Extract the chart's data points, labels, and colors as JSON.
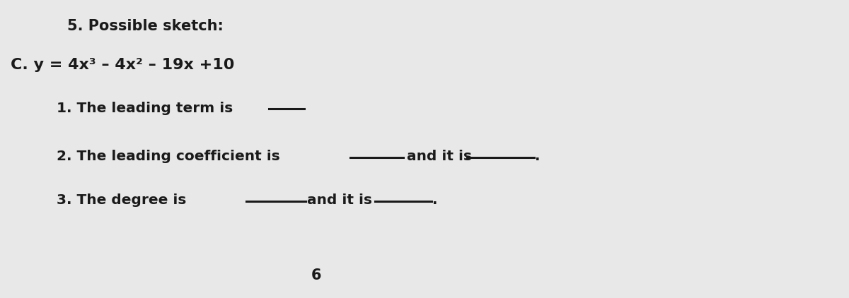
{
  "background_color": "#e8e8e8",
  "title_text": "5. Possible sketch:",
  "equation_text": "C. y = 4x³ – 4x² – 19x +10",
  "line1_text": "1. The leading term is ",
  "line2_text": "2. The leading coefficient is ",
  "line2_anditis_text": "and it is ",
  "line2_period_text": ".",
  "line3_text": "3. The degree is",
  "line3_anditis_text": "and it is ",
  "line3_period_text": ".",
  "page_num_text": "6",
  "font_color": "#1a1a1a",
  "line_color": "#1a1a1a",
  "line_lw": 2.2,
  "font_family": "DejaVu Sans",
  "title_fontsize": 15,
  "eq_fontsize": 16,
  "body_fontsize": 14.5
}
